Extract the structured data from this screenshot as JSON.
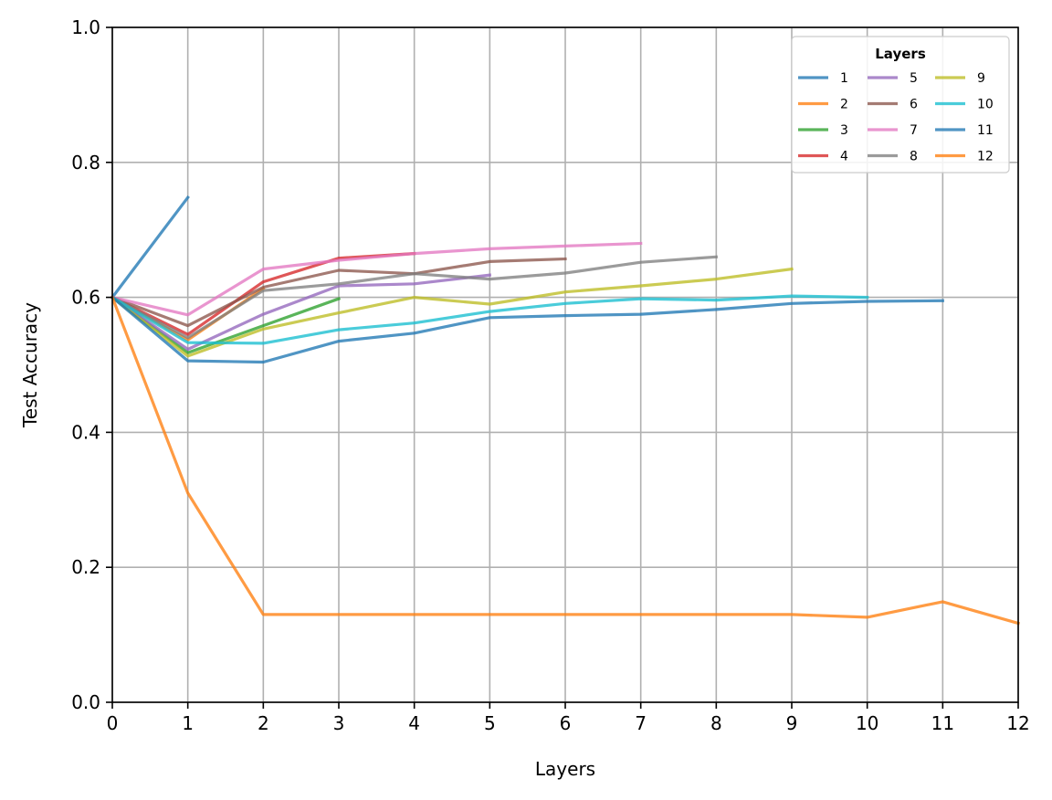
{
  "chart_data": {
    "type": "line",
    "xlabel": "Layers",
    "ylabel": "Test Accuracy",
    "xlim": [
      0,
      12
    ],
    "ylim": [
      0,
      1
    ],
    "x_ticks": [
      "0",
      "1",
      "2",
      "3",
      "4",
      "5",
      "6",
      "7",
      "8",
      "9",
      "10",
      "11",
      "12"
    ],
    "y_ticks": [
      "0.0",
      "0.2",
      "0.4",
      "0.6",
      "0.8",
      "1.0"
    ],
    "grid": true,
    "legend": {
      "title": "Layers",
      "placement": "top-right",
      "columns": 3
    },
    "series": [
      {
        "name": "1",
        "color": "#1f77b4",
        "x": [
          0,
          1
        ],
        "y": [
          0.6,
          0.748
        ]
      },
      {
        "name": "2",
        "color": "#ff7f0e",
        "x": [
          0,
          1,
          2
        ],
        "y": [
          0.6,
          0.537,
          0.613
        ]
      },
      {
        "name": "3",
        "color": "#2ca02c",
        "x": [
          0,
          1,
          2,
          3
        ],
        "y": [
          0.6,
          0.518,
          0.558,
          0.598
        ]
      },
      {
        "name": "4",
        "color": "#d62728",
        "x": [
          0,
          1,
          2,
          3,
          4
        ],
        "y": [
          0.6,
          0.545,
          0.623,
          0.658,
          0.665
        ]
      },
      {
        "name": "5",
        "color": "#9467bd",
        "x": [
          0,
          1,
          2,
          3,
          4,
          5
        ],
        "y": [
          0.6,
          0.523,
          0.575,
          0.617,
          0.62,
          0.633
        ]
      },
      {
        "name": "6",
        "color": "#8c564b",
        "x": [
          0,
          1,
          2,
          3,
          4,
          5,
          6
        ],
        "y": [
          0.6,
          0.558,
          0.615,
          0.64,
          0.635,
          0.653,
          0.657
        ]
      },
      {
        "name": "7",
        "color": "#e377c2",
        "x": [
          0,
          1,
          2,
          3,
          4,
          5,
          6,
          7
        ],
        "y": [
          0.6,
          0.574,
          0.642,
          0.655,
          0.665,
          0.672,
          0.676,
          0.68
        ]
      },
      {
        "name": "8",
        "color": "#7f7f7f",
        "x": [
          0,
          1,
          2,
          3,
          4,
          5,
          6,
          7,
          8
        ],
        "y": [
          0.6,
          0.54,
          0.61,
          0.62,
          0.635,
          0.627,
          0.636,
          0.652,
          0.66
        ]
      },
      {
        "name": "9",
        "color": "#bcbd22",
        "x": [
          0,
          1,
          2,
          3,
          4,
          5,
          6,
          7,
          8,
          9
        ],
        "y": [
          0.6,
          0.513,
          0.553,
          0.577,
          0.6,
          0.59,
          0.608,
          0.617,
          0.627,
          0.642
        ]
      },
      {
        "name": "10",
        "color": "#17becf",
        "x": [
          0,
          1,
          2,
          3,
          4,
          5,
          6,
          7,
          8,
          9,
          10
        ],
        "y": [
          0.6,
          0.533,
          0.532,
          0.552,
          0.562,
          0.579,
          0.591,
          0.598,
          0.596,
          0.602,
          0.6
        ]
      },
      {
        "name": "11",
        "color": "#1f77b4",
        "x": [
          0,
          1,
          2,
          3,
          4,
          5,
          6,
          7,
          8,
          9,
          10,
          11
        ],
        "y": [
          0.6,
          0.506,
          0.504,
          0.535,
          0.547,
          0.57,
          0.573,
          0.575,
          0.582,
          0.591,
          0.594,
          0.595
        ]
      },
      {
        "name": "12",
        "color": "#ff7f0e",
        "x": [
          0,
          1,
          2,
          3,
          4,
          5,
          6,
          7,
          8,
          9,
          10,
          11,
          12
        ],
        "y": [
          0.6,
          0.31,
          0.13,
          0.13,
          0.13,
          0.13,
          0.13,
          0.13,
          0.13,
          0.13,
          0.126,
          0.149,
          0.117
        ]
      }
    ]
  }
}
